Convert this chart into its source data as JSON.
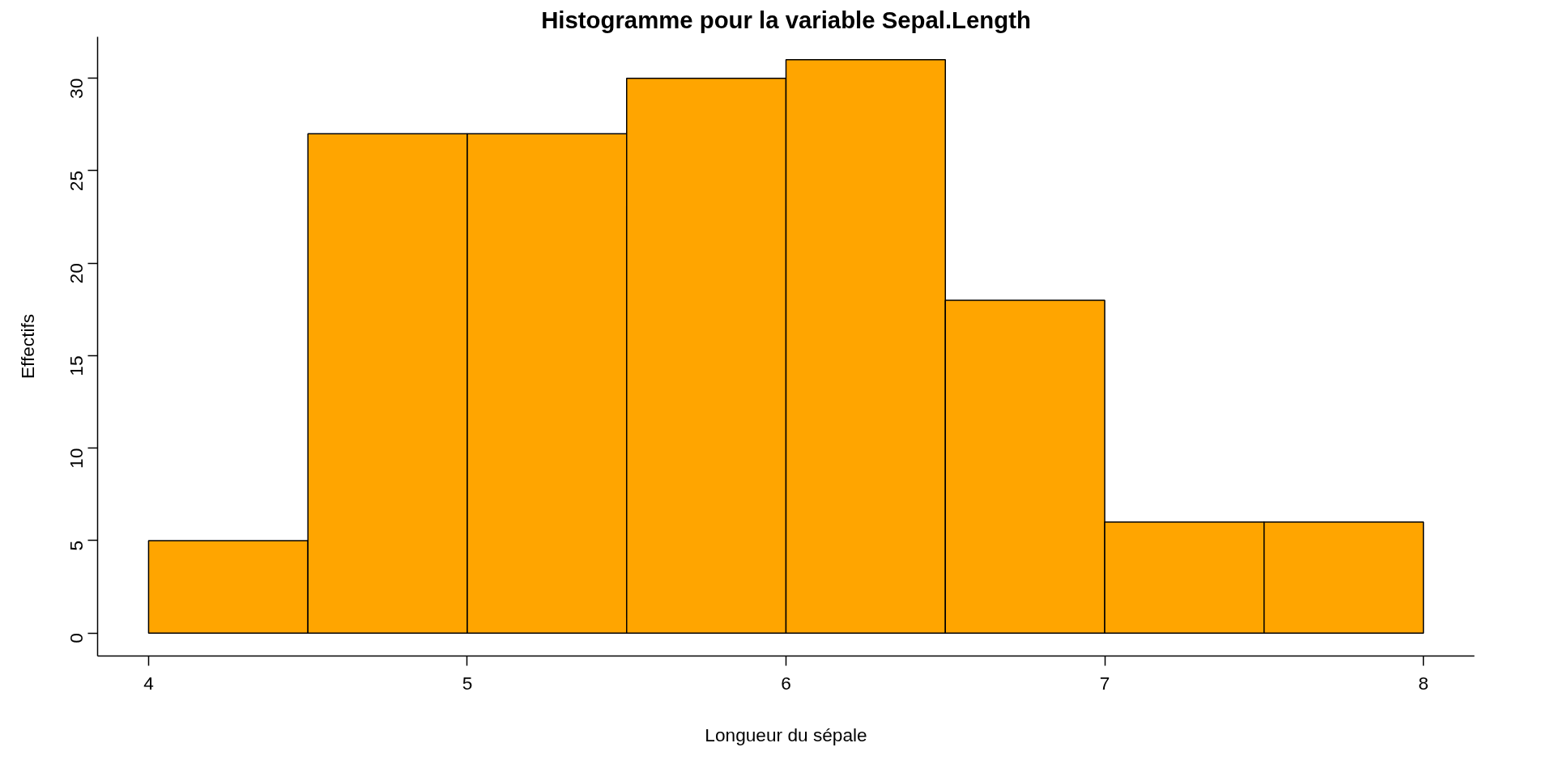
{
  "chart_data": {
    "type": "histogram",
    "title": "Histogramme pour la variable Sepal.Length",
    "xlabel": "Longueur du sépale",
    "ylabel": "Effectifs",
    "bins": [
      4,
      4.5,
      5,
      5.5,
      6,
      6.5,
      7,
      7.5,
      8
    ],
    "values": [
      5,
      27,
      27,
      30,
      31,
      18,
      6,
      6
    ],
    "color": "#ffa500",
    "xlim": [
      3.84,
      8.16
    ],
    "ylim": [
      -1.24,
      32.24
    ],
    "xticks": [
      4,
      5,
      6,
      7,
      8
    ],
    "yticks": [
      0,
      5,
      10,
      15,
      20,
      25,
      30
    ],
    "grid": false
  }
}
